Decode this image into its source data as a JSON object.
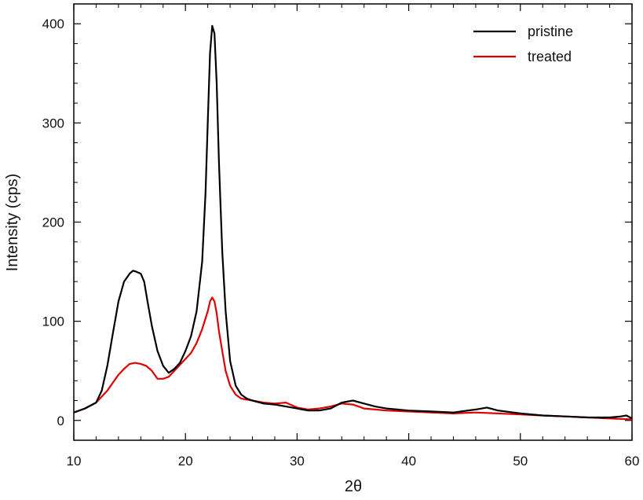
{
  "chart_data": {
    "type": "line",
    "title": "",
    "xlabel": "2θ",
    "ylabel": "Intensity (cps)",
    "xlim": [
      10,
      60
    ],
    "ylim": [
      -20,
      420
    ],
    "x_ticks": [
      10,
      20,
      30,
      40,
      50,
      60
    ],
    "y_ticks": [
      0,
      100,
      200,
      300,
      400
    ],
    "x_tick_labels": [
      "10",
      "20",
      "30",
      "40",
      "50",
      "60"
    ],
    "y_tick_labels": [
      "0",
      "100",
      "200",
      "300",
      "400"
    ],
    "grid": false,
    "legend_position": "top-right",
    "series": [
      {
        "name": "pristine",
        "color": "#000000",
        "x": [
          10,
          11,
          12,
          12.5,
          13,
          13.5,
          14,
          14.5,
          15,
          15.3,
          15.6,
          16,
          16.3,
          16.6,
          17,
          17.5,
          18,
          18.5,
          19,
          19.5,
          20,
          20.5,
          21,
          21.5,
          21.8,
          22,
          22.2,
          22.4,
          22.6,
          22.8,
          23,
          23.3,
          23.6,
          24,
          24.5,
          25,
          25.5,
          26,
          27,
          28,
          29,
          30,
          31,
          32,
          33,
          34,
          35,
          36,
          37,
          38,
          40,
          42,
          44,
          46,
          47,
          48,
          50,
          52,
          54,
          56,
          58,
          59,
          59.5,
          60
        ],
        "values": [
          8,
          12,
          18,
          30,
          55,
          88,
          120,
          140,
          148,
          151,
          150,
          148,
          140,
          120,
          95,
          70,
          55,
          48,
          52,
          58,
          70,
          85,
          110,
          160,
          230,
          300,
          370,
          398,
          390,
          340,
          260,
          170,
          110,
          60,
          35,
          26,
          22,
          20,
          17,
          16,
          14,
          12,
          10,
          10,
          12,
          18,
          20,
          17,
          14,
          12,
          10,
          9,
          8,
          11,
          13,
          10,
          7,
          5,
          4,
          3,
          3,
          4,
          5,
          2
        ]
      },
      {
        "name": "treated",
        "color": "#e00000",
        "x": [
          10,
          11,
          12,
          13,
          13.5,
          14,
          14.5,
          15,
          15.5,
          16,
          16.5,
          17,
          17.5,
          18,
          18.5,
          19,
          19.5,
          20,
          20.5,
          21,
          21.5,
          22,
          22.2,
          22.4,
          22.6,
          22.8,
          23,
          23.3,
          23.6,
          24,
          24.5,
          25,
          26,
          27,
          28,
          29,
          30,
          31,
          32,
          33,
          34,
          35,
          36,
          37,
          38,
          40,
          42,
          44,
          46,
          48,
          50,
          52,
          54,
          56,
          58,
          60
        ],
        "values": [
          8,
          12,
          18,
          30,
          38,
          46,
          52,
          57,
          58,
          57,
          55,
          50,
          42,
          42,
          44,
          50,
          56,
          62,
          68,
          78,
          92,
          110,
          120,
          124,
          120,
          108,
          90,
          70,
          50,
          35,
          26,
          22,
          20,
          18,
          17,
          18,
          13,
          11,
          12,
          14,
          17,
          16,
          12,
          11,
          10,
          9,
          8,
          7,
          8,
          7,
          6,
          5,
          4,
          3,
          2,
          1
        ]
      }
    ]
  }
}
